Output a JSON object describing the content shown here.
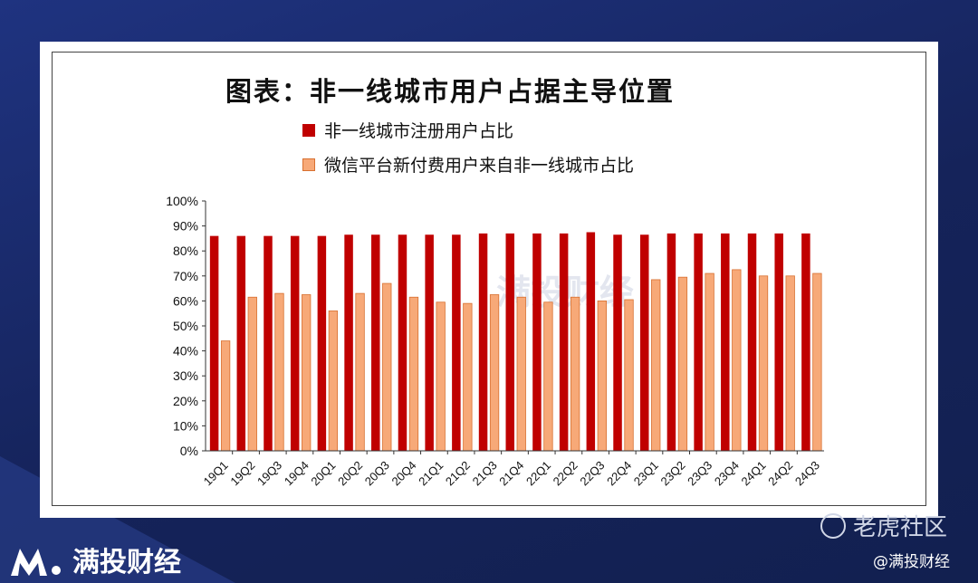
{
  "chart_data": {
    "type": "bar",
    "title": "图表：非一线城市用户占据主导位置",
    "categories": [
      "19Q1",
      "19Q2",
      "19Q3",
      "19Q4",
      "20Q1",
      "20Q2",
      "20Q3",
      "20Q4",
      "21Q1",
      "21Q2",
      "21Q3",
      "21Q4",
      "22Q1",
      "22Q2",
      "22Q3",
      "22Q4",
      "23Q1",
      "23Q2",
      "23Q3",
      "23Q4",
      "24Q1",
      "24Q2",
      "24Q3"
    ],
    "series": [
      {
        "name": "非一线城市注册用户占比",
        "color": "#c00000",
        "values": [
          86,
          86,
          86,
          86,
          86,
          86.5,
          86.5,
          86.5,
          86.5,
          86.5,
          87,
          87,
          87,
          87,
          87.5,
          86.5,
          86.5,
          87,
          87,
          87,
          87,
          87,
          87
        ]
      },
      {
        "name": "微信平台新付费用户来自非一线城市占比",
        "color": "#f7a978",
        "values": [
          44,
          61.5,
          63,
          62.5,
          56,
          63,
          67,
          61.5,
          59.5,
          59,
          62.5,
          61.5,
          59.5,
          61.5,
          60,
          60.5,
          68.5,
          69.5,
          71,
          72.5,
          70,
          70,
          71
        ]
      }
    ],
    "ylim": [
      0,
      100
    ],
    "yticks": [
      "0%",
      "10%",
      "20%",
      "30%",
      "40%",
      "50%",
      "60%",
      "70%",
      "80%",
      "90%",
      "100%"
    ],
    "legend": "top"
  },
  "watermark": {
    "center": "满投财经"
  },
  "footer": {
    "brand": "满投财经",
    "right_brand": "老虎社区",
    "handle": "@满投财经"
  }
}
